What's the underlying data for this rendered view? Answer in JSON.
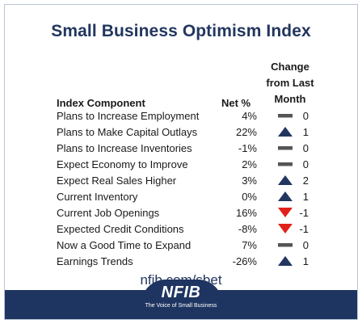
{
  "title": "Small Business Optimism Index",
  "headers": {
    "component": "Index Component",
    "net": "Net %",
    "change_line1": "Change",
    "change_line2": "from Last",
    "change_line3": "Month"
  },
  "rows": [
    {
      "component": "Plans to Increase Employment",
      "net": "4%",
      "change": "0",
      "trend": "flat"
    },
    {
      "component": "Plans to Make Capital Outlays",
      "net": "22%",
      "change": "1",
      "trend": "up"
    },
    {
      "component": "Plans to Increase Inventories",
      "net": "-1%",
      "change": "0",
      "trend": "flat"
    },
    {
      "component": "Expect Economy to Improve",
      "net": "2%",
      "change": "0",
      "trend": "flat"
    },
    {
      "component": "Expect Real Sales Higher",
      "net": "3%",
      "change": "2",
      "trend": "up"
    },
    {
      "component": "Current Inventory",
      "net": "0%",
      "change": "1",
      "trend": "up"
    },
    {
      "component": "Current Job Openings",
      "net": "16%",
      "change": "-1",
      "trend": "down"
    },
    {
      "component": "Expected Credit Conditions",
      "net": "-8%",
      "change": "-1",
      "trend": "down"
    },
    {
      "component": "Now a Good Time to Expand",
      "net": "7%",
      "change": "0",
      "trend": "flat"
    },
    {
      "component": "Earnings Trends",
      "net": "-26%",
      "change": "1",
      "trend": "up"
    }
  ],
  "trend_colors": {
    "up": "#22365f",
    "down": "#e0201a",
    "flat": "#555555"
  },
  "url": "nfib.com/sbet",
  "footer": {
    "logo": "NFIB",
    "tagline": "The Voice of Small Business"
  }
}
